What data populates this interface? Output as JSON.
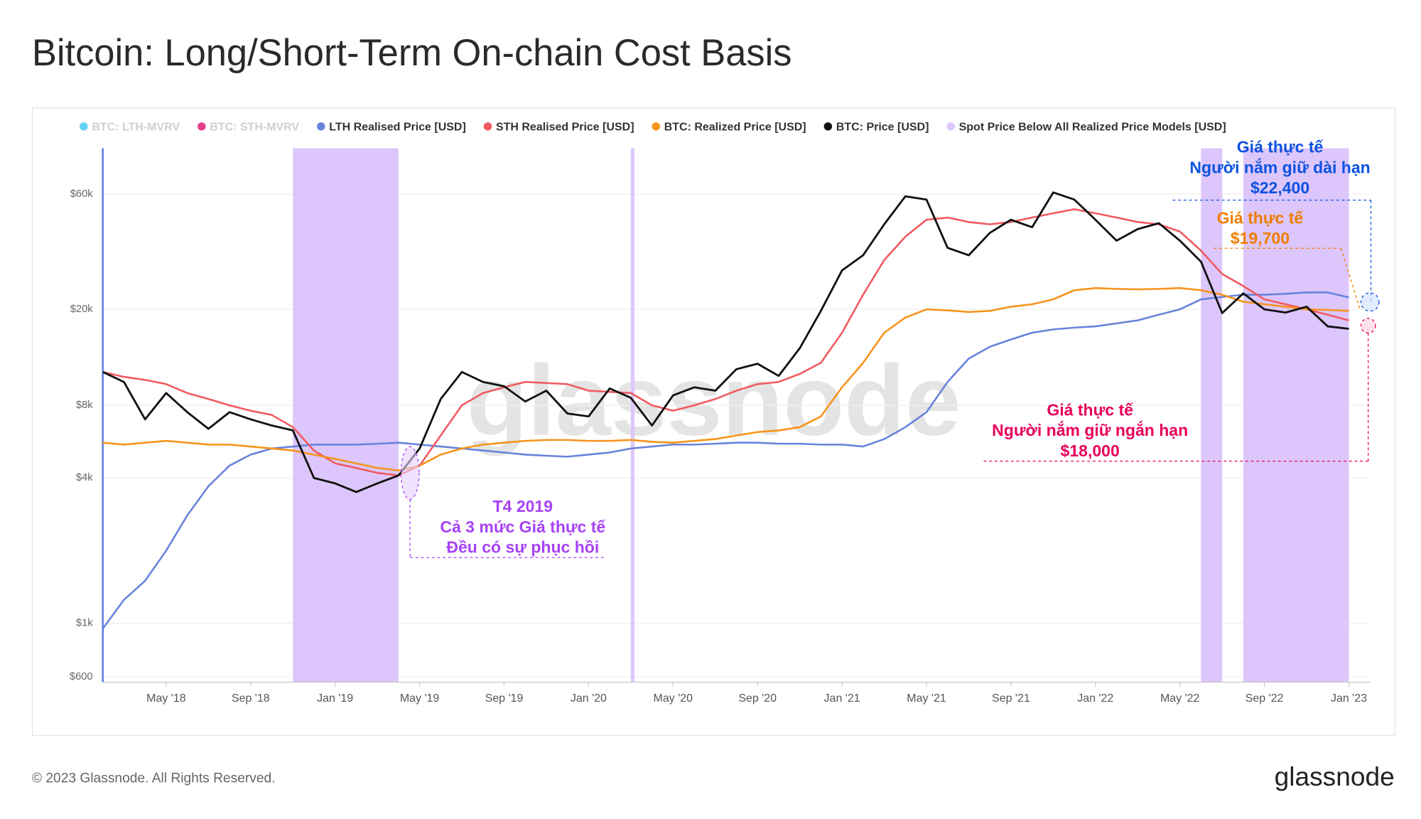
{
  "chart_data": {
    "type": "line",
    "title": "Bitcoin: Long/Short-Term On-chain Cost Basis",
    "log_scale": true,
    "grid": true,
    "ylim": [
      570,
      93000
    ],
    "yticks": [
      {
        "value": 600,
        "label": "$600"
      },
      {
        "value": 1000,
        "label": "$1k"
      },
      {
        "value": 4000,
        "label": "$4k"
      },
      {
        "value": 8000,
        "label": "$8k"
      },
      {
        "value": 20000,
        "label": "$20k"
      },
      {
        "value": 60000,
        "label": "$60k"
      }
    ],
    "xlim": [
      "2018-02",
      "2023-02"
    ],
    "xticks": [
      {
        "value": "2018-05",
        "label": "May '18"
      },
      {
        "value": "2018-09",
        "label": "Sep '18"
      },
      {
        "value": "2019-01",
        "label": "Jan '19"
      },
      {
        "value": "2019-05",
        "label": "May '19"
      },
      {
        "value": "2019-09",
        "label": "Sep '19"
      },
      {
        "value": "2020-01",
        "label": "Jan '20"
      },
      {
        "value": "2020-05",
        "label": "May '20"
      },
      {
        "value": "2020-09",
        "label": "Sep '20"
      },
      {
        "value": "2021-01",
        "label": "Jan '21"
      },
      {
        "value": "2021-05",
        "label": "May '21"
      },
      {
        "value": "2021-09",
        "label": "Sep '21"
      },
      {
        "value": "2022-01",
        "label": "Jan '22"
      },
      {
        "value": "2022-05",
        "label": "May '22"
      },
      {
        "value": "2022-09",
        "label": "Sep '22"
      },
      {
        "value": "2023-01",
        "label": "Jan '23"
      }
    ],
    "x": [
      "2018-02",
      "2018-03",
      "2018-04",
      "2018-05",
      "2018-06",
      "2018-07",
      "2018-08",
      "2018-09",
      "2018-10",
      "2018-11",
      "2018-12",
      "2019-01",
      "2019-02",
      "2019-03",
      "2019-04",
      "2019-05",
      "2019-06",
      "2019-07",
      "2019-08",
      "2019-09",
      "2019-10",
      "2019-11",
      "2019-12",
      "2020-01",
      "2020-02",
      "2020-03",
      "2020-04",
      "2020-05",
      "2020-06",
      "2020-07",
      "2020-08",
      "2020-09",
      "2020-10",
      "2020-11",
      "2020-12",
      "2021-01",
      "2021-02",
      "2021-03",
      "2021-04",
      "2021-05",
      "2021-06",
      "2021-07",
      "2021-08",
      "2021-09",
      "2021-10",
      "2021-11",
      "2021-12",
      "2022-01",
      "2022-02",
      "2022-03",
      "2022-04",
      "2022-05",
      "2022-06",
      "2022-07",
      "2022-08",
      "2022-09",
      "2022-10",
      "2022-11",
      "2022-12",
      "2023-01"
    ],
    "inactive_legend": [
      {
        "name": "BTC: LTH-MVRV",
        "color": "#3cc8f0"
      },
      {
        "name": "BTC: STH-MVRV",
        "color": "#e0106f"
      }
    ],
    "series": [
      {
        "name": "LTH Realised Price [USD]",
        "color": "#6683dc",
        "values": [
          950,
          1250,
          1500,
          2000,
          2800,
          3700,
          4500,
          5000,
          5300,
          5400,
          5500,
          5500,
          5500,
          5550,
          5600,
          5500,
          5400,
          5300,
          5200,
          5100,
          5000,
          4950,
          4900,
          5000,
          5100,
          5300,
          5400,
          5500,
          5500,
          5550,
          5600,
          5600,
          5550,
          5550,
          5500,
          5500,
          5400,
          5800,
          6500,
          7500,
          10000,
          12500,
          14000,
          15000,
          16000,
          16500,
          16800,
          17000,
          17500,
          18000,
          19000,
          20000,
          22000,
          22500,
          23000,
          23000,
          23200,
          23500,
          23500,
          22400
        ]
      },
      {
        "name": "STH Realised Price [USD]",
        "color": "#f05a5f",
        "values": [
          11000,
          10500,
          10200,
          9800,
          9000,
          8500,
          8000,
          7600,
          7300,
          6500,
          5200,
          4600,
          4400,
          4200,
          4100,
          4500,
          6000,
          8000,
          9000,
          9500,
          10000,
          9900,
          9800,
          9200,
          9100,
          9000,
          8000,
          7600,
          8000,
          8500,
          9200,
          9800,
          10000,
          10800,
          12000,
          16000,
          23000,
          32000,
          40000,
          47000,
          48000,
          46000,
          45000,
          46000,
          48000,
          50000,
          52000,
          50000,
          48000,
          46000,
          45000,
          42000,
          35000,
          28000,
          25000,
          22000,
          21000,
          20000,
          19000,
          18000
        ]
      },
      {
        "name": "BTC: Realized Price [USD]",
        "color": "#f7931a",
        "values": [
          5600,
          5500,
          5600,
          5700,
          5600,
          5500,
          5500,
          5400,
          5300,
          5200,
          5000,
          4800,
          4600,
          4400,
          4300,
          4500,
          5000,
          5300,
          5500,
          5600,
          5700,
          5750,
          5750,
          5700,
          5700,
          5750,
          5650,
          5600,
          5700,
          5800,
          6000,
          6200,
          6300,
          6500,
          7200,
          9500,
          12000,
          16000,
          18500,
          20000,
          19800,
          19500,
          19700,
          20500,
          21000,
          22000,
          24000,
          24500,
          24300,
          24200,
          24300,
          24500,
          24000,
          23000,
          21500,
          21000,
          20500,
          20000,
          19900,
          19700
        ]
      },
      {
        "name": "BTC: Price [USD]",
        "color": "#111111",
        "values": [
          11000,
          10000,
          7000,
          9000,
          7500,
          6400,
          7500,
          7000,
          6600,
          6300,
          4000,
          3800,
          3500,
          3800,
          4100,
          5300,
          8500,
          11000,
          10000,
          9600,
          8300,
          9200,
          7400,
          7200,
          9400,
          8600,
          6600,
          8800,
          9500,
          9200,
          11300,
          11900,
          10600,
          13800,
          19700,
          29000,
          33500,
          45000,
          58800,
          57000,
          36000,
          33500,
          41500,
          47000,
          43800,
          61000,
          57000,
          47000,
          38500,
          43000,
          45500,
          38500,
          31500,
          19300,
          23300,
          20000,
          19400,
          20500,
          17000,
          16600
        ]
      }
    ],
    "shaded": {
      "name": "Spot Price Below All Realized Price Models [USD]",
      "color": "#dcc6fb",
      "ranges": [
        [
          "2018-11",
          "2019-04"
        ],
        [
          "2020-03",
          "2020-03"
        ],
        [
          "2022-06",
          "2022-07"
        ],
        [
          "2022-08",
          "2023-01"
        ]
      ]
    },
    "watermark": "glassnode",
    "annotations": [
      {
        "color": "#0d52e0",
        "lines": [
          "Giá thực tế",
          "Người nắm giữ dài hạn",
          "$22,400"
        ]
      },
      {
        "color": "#f07d00",
        "lines": [
          "Giá thực tế",
          "$19,700"
        ]
      },
      {
        "color": "#e8005a",
        "lines": [
          "Giá thực tế",
          "Người nắm giữ ngắn hạn",
          "$18,000"
        ]
      },
      {
        "color": "#a742f5",
        "lines": [
          "T4 2019",
          "Cả 3 mức Giá thực tế",
          "Đều có sự phục hồi"
        ]
      }
    ],
    "footer": "© 2023 Glassnode. All Rights Reserved.",
    "logo": "glassnode"
  }
}
